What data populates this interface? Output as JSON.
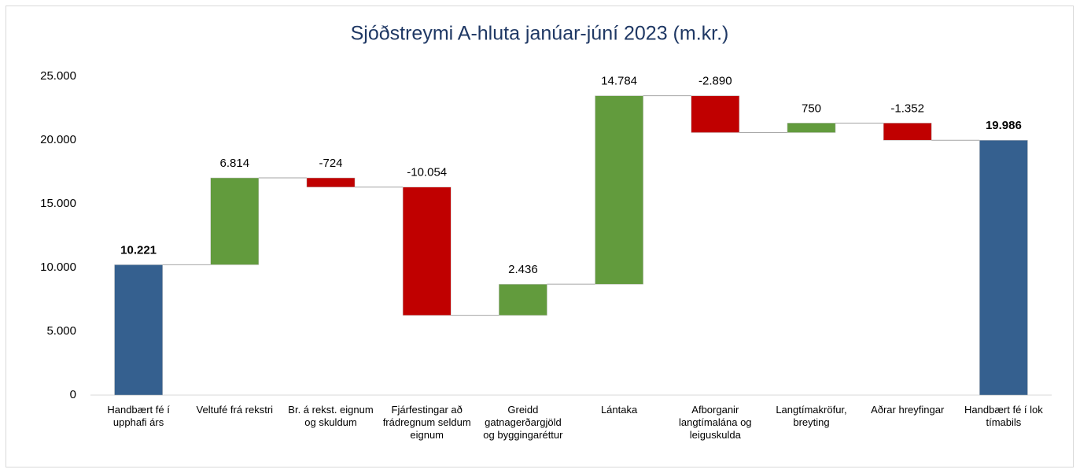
{
  "chart_data": {
    "type": "waterfall",
    "title": "Sjóðstreymi A-hluta janúar-júní 2023 (m.kr.)",
    "categories": [
      "Handbært fé í upphafi árs",
      "Veltufé frá rekstri",
      "Br. á rekst. eignum og skuldum",
      "Fjárfestingar að frádregnum seldum eignum",
      "Greidd gatnagerðargjöld og byggingaréttur",
      "Lántaka",
      "Afborganir langtímalána og leiguskulda",
      "Langtímakröfur, breyting",
      "Aðrar hreyfingar",
      "Handbært fé í lok tímabils"
    ],
    "values": [
      10221,
      6814,
      -724,
      -10054,
      2436,
      14784,
      -2890,
      750,
      -1352,
      19986
    ],
    "value_labels": [
      "10.221",
      "6.814",
      "-724",
      "-10.054",
      "2.436",
      "14.784",
      "-2.890",
      "750",
      "-1.352",
      "19.986"
    ],
    "colors": {
      "total": "#35608f",
      "increase": "#629b3d",
      "decrease": "#c00000"
    },
    "ylim": [
      0,
      25000
    ],
    "yticks": [
      0,
      {
        "value": 5000,
        "label": "5.000"
      },
      {
        "value": 10000,
        "label": "10.000"
      },
      {
        "value": 15000,
        "label": "15.000"
      },
      {
        "value": 20000,
        "label": "20.000"
      },
      {
        "value": 25000,
        "label": "25.000"
      }
    ],
    "grid": false
  }
}
